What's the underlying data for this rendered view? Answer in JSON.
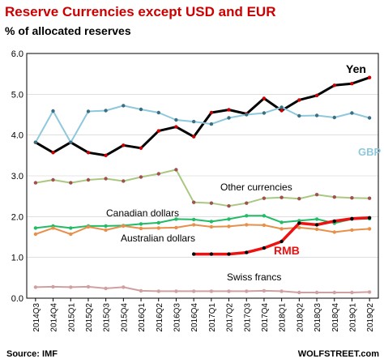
{
  "chart_data": {
    "type": "line",
    "title": "Reserve Currencies except USD and EUR",
    "subtitle": "% of allocated reserves",
    "ylim": [
      0,
      6
    ],
    "yticks": [
      "0.0",
      "1.0",
      "2.0",
      "3.0",
      "4.0",
      "5.0",
      "6.0"
    ],
    "grid": true,
    "categories": [
      "2014Q3",
      "2014Q4",
      "2015Q1",
      "2015Q2",
      "2015Q3",
      "2015Q4",
      "2016Q1",
      "2016Q2",
      "2016Q3",
      "2016Q4",
      "2017Q1",
      "2017Q2",
      "2017Q3",
      "2017Q4",
      "2018Q1",
      "2018Q2",
      "2018Q3",
      "2018Q4",
      "2019Q1",
      "2019Q2"
    ],
    "series": [
      {
        "name": "Yen",
        "color": "#000000",
        "marker_color": "#cc0000",
        "width": 3,
        "values": [
          3.82,
          3.57,
          3.82,
          3.57,
          3.5,
          3.75,
          3.68,
          4.1,
          4.2,
          3.96,
          4.55,
          4.62,
          4.52,
          4.9,
          4.6,
          4.86,
          4.97,
          5.22,
          5.26,
          5.41
        ]
      },
      {
        "name": "GBP",
        "color": "#8ec8dc",
        "marker_color": "#3a6f82",
        "width": 2,
        "values": [
          3.82,
          4.59,
          3.82,
          4.58,
          4.6,
          4.72,
          4.63,
          4.55,
          4.37,
          4.33,
          4.27,
          4.42,
          4.5,
          4.54,
          4.68,
          4.47,
          4.48,
          4.43,
          4.54,
          4.42
        ]
      },
      {
        "name": "Other currencies",
        "color": "#aac880",
        "marker_color": "#a05050",
        "width": 2,
        "values": [
          2.83,
          2.9,
          2.83,
          2.9,
          2.93,
          2.87,
          2.97,
          3.05,
          3.15,
          2.35,
          2.33,
          2.26,
          2.33,
          2.45,
          2.47,
          2.44,
          2.54,
          2.48,
          2.46,
          2.45
        ]
      },
      {
        "name": "Canadian dollars",
        "color": "#22bb66",
        "marker_color": "#22bb66",
        "width": 2,
        "values": [
          1.72,
          1.77,
          1.72,
          1.77,
          1.77,
          1.78,
          1.82,
          1.85,
          1.94,
          1.93,
          1.88,
          1.94,
          2.02,
          2.02,
          1.86,
          1.9,
          1.94,
          1.84,
          1.94,
          1.95
        ]
      },
      {
        "name": "Australian dollars",
        "color": "#e8904a",
        "marker_color": "#e8904a",
        "width": 2,
        "values": [
          1.57,
          1.72,
          1.57,
          1.75,
          1.67,
          1.77,
          1.71,
          1.72,
          1.73,
          1.8,
          1.75,
          1.76,
          1.8,
          1.79,
          1.7,
          1.73,
          1.69,
          1.62,
          1.67,
          1.7
        ]
      },
      {
        "name": "RMB",
        "color": "#ee1111",
        "marker_color": "#000000",
        "width": 3.5,
        "values": [
          null,
          null,
          null,
          null,
          null,
          null,
          null,
          null,
          null,
          1.08,
          1.08,
          1.08,
          1.12,
          1.23,
          1.39,
          1.84,
          1.8,
          1.89,
          1.95,
          1.97
        ]
      },
      {
        "name": "Swiss francs",
        "color": "#d0a0a0",
        "marker_color": "#d0a0a0",
        "width": 2,
        "values": [
          0.27,
          0.28,
          0.27,
          0.28,
          0.24,
          0.27,
          0.18,
          0.17,
          0.17,
          0.17,
          0.17,
          0.17,
          0.17,
          0.18,
          0.17,
          0.14,
          0.14,
          0.14,
          0.14,
          0.15
        ]
      }
    ],
    "source": "Source: IMF",
    "brand": "WOLFSTREET.com"
  }
}
